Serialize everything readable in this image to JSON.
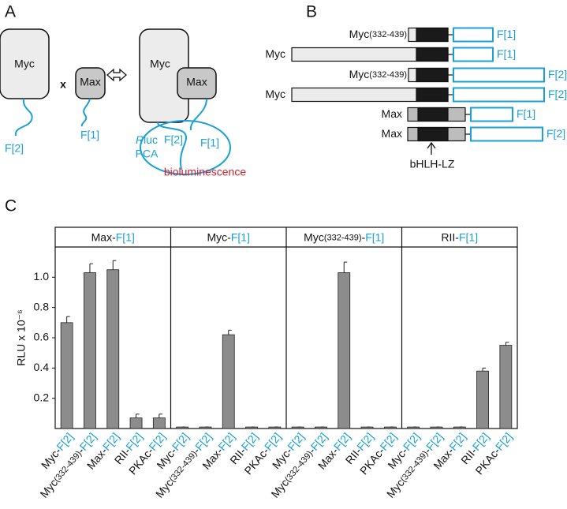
{
  "panel_a": {
    "letter": "A",
    "left": {
      "myc": "Myc",
      "times": "x",
      "max": "Max",
      "tag_myc": "F[2]",
      "tag_max": "F[1]"
    },
    "right": {
      "myc": "Myc",
      "max": "Max",
      "reporter_r": "R",
      "reporter": "luc",
      "pca": "PCA",
      "tag_myc": "F[2]",
      "tag_max": "F[1]",
      "signal": "bioluminescence"
    }
  },
  "panel_b": {
    "letter": "B",
    "rows": [
      {
        "label": "Myc(332-439)",
        "tag": "F[1]"
      },
      {
        "label": "Myc",
        "tag": "F[1]"
      },
      {
        "label": "Myc(332-439)",
        "tag": "F[2]"
      },
      {
        "label": "Myc",
        "tag": "F[2]"
      },
      {
        "label": "Max",
        "tag": "F[1]"
      },
      {
        "label": "Max",
        "tag": "F[2]"
      }
    ],
    "domain": "bHLH-LZ"
  },
  "panel_c": {
    "letter": "C"
  },
  "chart_data": [
    {
      "type": "bar",
      "title": "Max-F[1]",
      "ylabel": "RLU x 10⁻⁶",
      "ylim": [
        0,
        1.2
      ],
      "yticks": [
        0.2,
        0.4,
        0.6,
        0.8,
        {
          "value": 1,
          "label": "1.0"
        }
      ],
      "categories": [
        "Myc-F[2]",
        "Myc(332-439)-F[2]",
        "Max-F[2]",
        "RII-F[2]",
        "PKAc-F[2]"
      ],
      "values": [
        0.7,
        1.03,
        1.05,
        0.07,
        0.07
      ],
      "errors": [
        0.04,
        0.06,
        0.06,
        0.025,
        0.025
      ],
      "color": "#8c8c8c"
    },
    {
      "type": "bar",
      "title": "Myc-F[1]",
      "categories": [
        "Myc-F[2]",
        "Myc(332-439)-F[2]",
        "Max-F[2]",
        "RII-F[2]",
        "PKAc-F[2]"
      ],
      "values": [
        0.01,
        0.01,
        0.62,
        0.01,
        0.01
      ],
      "errors": [
        0,
        0,
        0.03,
        0,
        0
      ],
      "color": "#8c8c8c"
    },
    {
      "type": "bar",
      "title": "Myc(332-439)-F[1]",
      "categories": [
        "Myc-F[2]",
        "Myc(332-439)-F[2]",
        "Max-F[2]",
        "RII-F[2]",
        "PKAc-F[2]"
      ],
      "values": [
        0.01,
        0.01,
        1.03,
        0.01,
        0.01
      ],
      "errors": [
        0,
        0,
        0.07,
        0,
        0
      ],
      "color": "#8c8c8c"
    },
    {
      "type": "bar",
      "title": "RII-F[1]",
      "categories": [
        "Myc-F[2]",
        "Myc(332-439)-F[2]",
        "Max-F[2]",
        "RII-F[2]",
        "PKAc-F[2]"
      ],
      "values": [
        0.01,
        0.01,
        0.01,
        0.38,
        0.55
      ],
      "errors": [
        0,
        0,
        0,
        0.02,
        0.02
      ],
      "color": "#8c8c8c"
    }
  ]
}
